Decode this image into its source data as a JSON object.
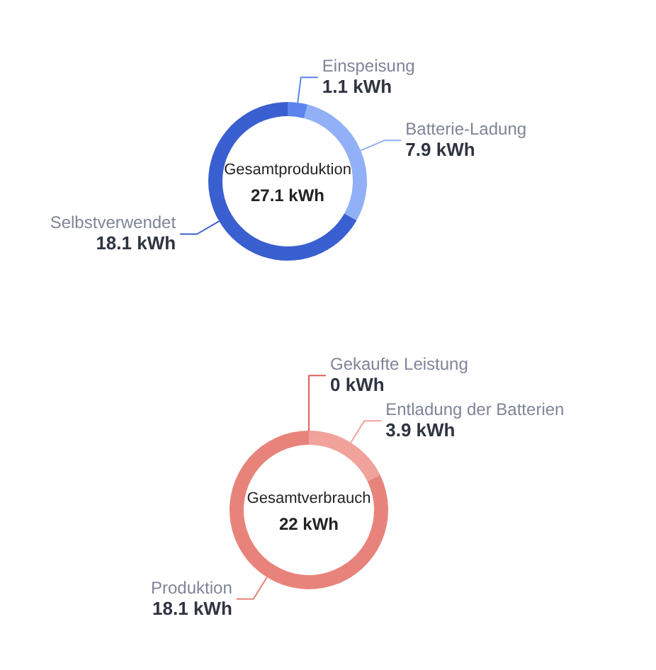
{
  "chart_data": [
    {
      "type": "donut",
      "title": "Gesamtproduktion",
      "subtitle": "27.1 kWh",
      "categories": [
        "Einspeisung",
        "Batterie-Ladung",
        "Selbstverwendet"
      ],
      "values": [
        1.1,
        7.9,
        18.1
      ],
      "value_labels": [
        "1.1 kWh",
        "7.9 kWh",
        "18.1 kWh"
      ],
      "colors": [
        "#5b84ee",
        "#91b0f8",
        "#3a5fd0"
      ]
    },
    {
      "type": "donut",
      "title": "Gesamtverbrauch",
      "subtitle": "22 kWh",
      "categories": [
        "Gekaufte Leistung",
        "Entladung der Batterien",
        "Produktion"
      ],
      "values": [
        0,
        3.9,
        18.1
      ],
      "value_labels": [
        "0 kWh",
        "3.9 kWh",
        "18.1 kWh"
      ],
      "colors": [
        "#e0605a",
        "#f0a29b",
        "#e8837c"
      ]
    }
  ]
}
